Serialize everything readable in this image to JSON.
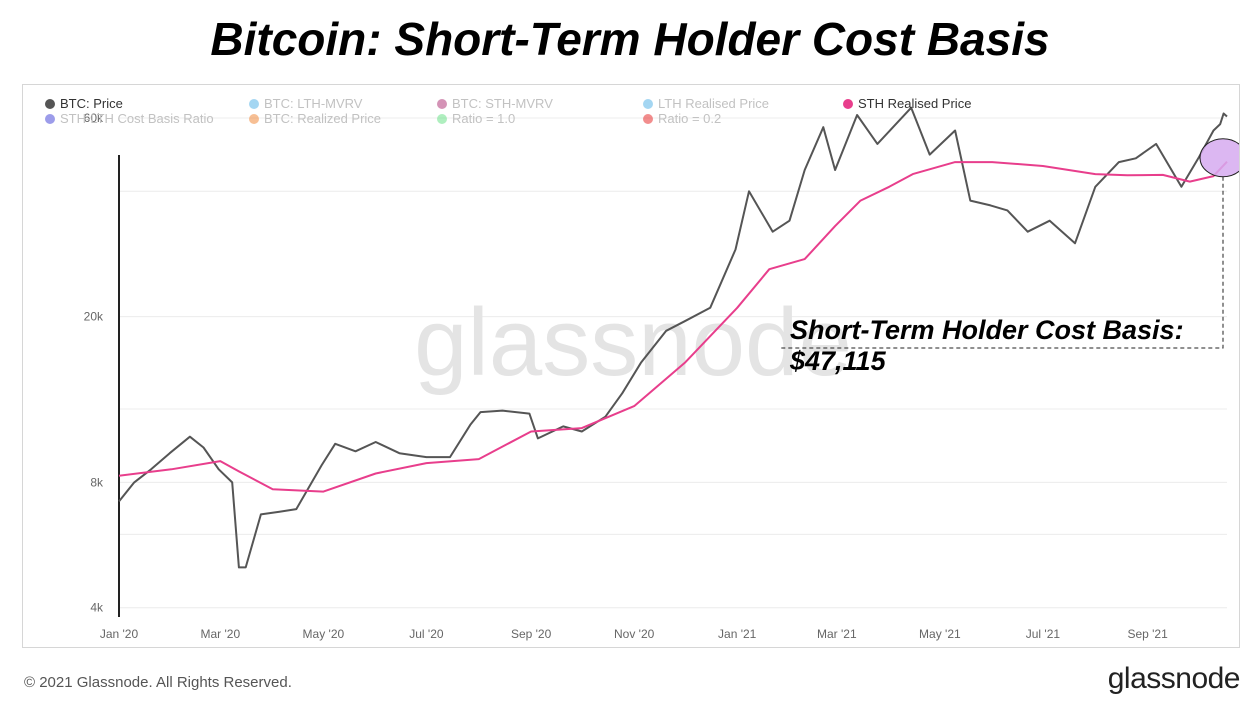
{
  "title": "Bitcoin: Short-Term Holder Cost Basis",
  "legend": [
    {
      "label": "BTC: Price",
      "color": "#555555",
      "active": true
    },
    {
      "label": "BTC: LTH-MVRV",
      "color": "#5ab4e8",
      "active": false
    },
    {
      "label": "BTC: STH-MVRV",
      "color": "#b03a7a",
      "active": false
    },
    {
      "label": "LTH Realised Price",
      "color": "#5ab4e8",
      "active": false
    },
    {
      "label": "STH Realised Price",
      "color": "#e83e8c",
      "active": true
    },
    {
      "label": "STH-LTH Cost Basis Ratio",
      "color": "#4b4bd8",
      "active": false
    },
    {
      "label": "BTC: Realized Price",
      "color": "#f08a3c",
      "active": false
    },
    {
      "label": "Ratio = 1.0",
      "color": "#6ee28a",
      "active": false
    },
    {
      "label": "Ratio = 0.2",
      "color": "#e83030",
      "active": false
    }
  ],
  "watermark": "glassnode",
  "annotation": {
    "line1": "Short-Term Holder Cost Basis:",
    "line2": "$47,115"
  },
  "footer": {
    "copyright": "© 2021 Glassnode. All Rights Reserved.",
    "logo": "glassnode"
  },
  "chart_data": {
    "type": "line",
    "y_scale": "log",
    "ylim": [
      3800,
      72000
    ],
    "xlim": [
      "2020-01-01",
      "2021-10-18"
    ],
    "y_ticks": [
      {
        "value": 4000,
        "label": "4k"
      },
      {
        "value": 8000,
        "label": "8k"
      },
      {
        "value": 20000,
        "label": "20k"
      },
      {
        "value": 60000,
        "label": "60k"
      }
    ],
    "y_gridlines": [
      4000,
      6000,
      8000,
      12000,
      20000,
      40000,
      60000
    ],
    "x_ticks": [
      {
        "date": "2020-01-01",
        "label": "Jan '20"
      },
      {
        "date": "2020-03-01",
        "label": "Mar '20"
      },
      {
        "date": "2020-05-01",
        "label": "May '20"
      },
      {
        "date": "2020-07-01",
        "label": "Jul '20"
      },
      {
        "date": "2020-09-01",
        "label": "Sep '20"
      },
      {
        "date": "2020-11-01",
        "label": "Nov '20"
      },
      {
        "date": "2021-01-01",
        "label": "Jan '21"
      },
      {
        "date": "2021-03-01",
        "label": "Mar '21"
      },
      {
        "date": "2021-05-01",
        "label": "May '21"
      },
      {
        "date": "2021-07-01",
        "label": "Jul '21"
      },
      {
        "date": "2021-09-01",
        "label": "Sep '21"
      }
    ],
    "series": [
      {
        "name": "BTC: Price",
        "color": "#555555",
        "points": [
          [
            "2020-01-01",
            7200
          ],
          [
            "2020-01-10",
            8000
          ],
          [
            "2020-01-20",
            8600
          ],
          [
            "2020-01-31",
            9400
          ],
          [
            "2020-02-12",
            10300
          ],
          [
            "2020-02-20",
            9700
          ],
          [
            "2020-02-29",
            8600
          ],
          [
            "2020-03-08",
            8000
          ],
          [
            "2020-03-12",
            5000
          ],
          [
            "2020-03-16",
            5000
          ],
          [
            "2020-03-25",
            6700
          ],
          [
            "2020-04-05",
            6800
          ],
          [
            "2020-04-15",
            6900
          ],
          [
            "2020-04-30",
            8800
          ],
          [
            "2020-05-08",
            9900
          ],
          [
            "2020-05-20",
            9500
          ],
          [
            "2020-06-01",
            10000
          ],
          [
            "2020-06-15",
            9400
          ],
          [
            "2020-07-01",
            9200
          ],
          [
            "2020-07-15",
            9200
          ],
          [
            "2020-07-27",
            11000
          ],
          [
            "2020-08-02",
            11800
          ],
          [
            "2020-08-15",
            11900
          ],
          [
            "2020-08-31",
            11700
          ],
          [
            "2020-09-05",
            10200
          ],
          [
            "2020-09-20",
            10900
          ],
          [
            "2020-10-01",
            10600
          ],
          [
            "2020-10-15",
            11500
          ],
          [
            "2020-10-25",
            13100
          ],
          [
            "2020-11-05",
            15500
          ],
          [
            "2020-11-20",
            18500
          ],
          [
            "2020-12-01",
            19500
          ],
          [
            "2020-12-16",
            21000
          ],
          [
            "2020-12-31",
            29000
          ],
          [
            "2021-01-08",
            40000
          ],
          [
            "2021-01-22",
            32000
          ],
          [
            "2021-02-01",
            34000
          ],
          [
            "2021-02-10",
            45000
          ],
          [
            "2021-02-21",
            57000
          ],
          [
            "2021-02-28",
            45000
          ],
          [
            "2021-03-13",
            61000
          ],
          [
            "2021-03-25",
            52000
          ],
          [
            "2021-04-14",
            63500
          ],
          [
            "2021-04-25",
            49000
          ],
          [
            "2021-05-10",
            56000
          ],
          [
            "2021-05-19",
            38000
          ],
          [
            "2021-05-31",
            37000
          ],
          [
            "2021-06-10",
            36000
          ],
          [
            "2021-06-22",
            32000
          ],
          [
            "2021-07-05",
            34000
          ],
          [
            "2021-07-20",
            30000
          ],
          [
            "2021-08-01",
            41000
          ],
          [
            "2021-08-15",
            47000
          ],
          [
            "2021-08-25",
            48000
          ],
          [
            "2021-09-06",
            52000
          ],
          [
            "2021-09-21",
            41000
          ],
          [
            "2021-10-01",
            48000
          ],
          [
            "2021-10-10",
            56000
          ],
          [
            "2021-10-14",
            58000
          ],
          [
            "2021-10-16",
            61500
          ],
          [
            "2021-10-18",
            60500
          ]
        ]
      },
      {
        "name": "STH Realised Price",
        "color": "#e83e8c",
        "points": [
          [
            "2020-01-01",
            8300
          ],
          [
            "2020-02-01",
            8600
          ],
          [
            "2020-03-01",
            9000
          ],
          [
            "2020-03-12",
            8500
          ],
          [
            "2020-04-01",
            7700
          ],
          [
            "2020-05-01",
            7600
          ],
          [
            "2020-06-01",
            8400
          ],
          [
            "2020-07-01",
            8900
          ],
          [
            "2020-08-01",
            9100
          ],
          [
            "2020-09-01",
            10600
          ],
          [
            "2020-10-01",
            10800
          ],
          [
            "2020-11-01",
            12200
          ],
          [
            "2020-12-01",
            15500
          ],
          [
            "2021-01-01",
            21000
          ],
          [
            "2021-01-20",
            26000
          ],
          [
            "2021-02-10",
            27500
          ],
          [
            "2021-02-28",
            33000
          ],
          [
            "2021-03-15",
            38000
          ],
          [
            "2021-04-01",
            41000
          ],
          [
            "2021-04-15",
            44000
          ],
          [
            "2021-05-10",
            47000
          ],
          [
            "2021-06-01",
            47000
          ],
          [
            "2021-07-01",
            46000
          ],
          [
            "2021-08-01",
            44000
          ],
          [
            "2021-08-20",
            43700
          ],
          [
            "2021-09-10",
            43800
          ],
          [
            "2021-09-26",
            42200
          ],
          [
            "2021-10-10",
            43500
          ],
          [
            "2021-10-18",
            47115
          ]
        ]
      }
    ]
  }
}
